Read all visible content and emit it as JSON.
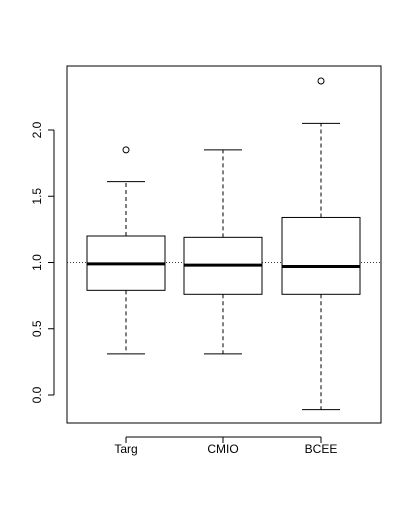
{
  "chart_data": {
    "type": "box",
    "categories": [
      "Targ",
      "CMIO",
      "BCEE"
    ],
    "boxes": [
      {
        "name": "Targ",
        "whisker_low": 0.31,
        "q1": 0.79,
        "median": 0.99,
        "q3": 1.2,
        "whisker_high": 1.61,
        "outliers": [
          1.85
        ]
      },
      {
        "name": "CMIO",
        "whisker_low": 0.31,
        "q1": 0.76,
        "median": 0.98,
        "q3": 1.19,
        "whisker_high": 1.85,
        "outliers": []
      },
      {
        "name": "BCEE",
        "whisker_low": -0.11,
        "q1": 0.76,
        "median": 0.97,
        "q3": 1.34,
        "whisker_high": 2.05,
        "outliers": [
          2.37
        ]
      }
    ],
    "reference_line": 1.0,
    "yticks": [
      "0.0",
      "0.5",
      "1.0",
      "1.5",
      "2.0"
    ],
    "ylim": [
      -0.2,
      2.5
    ],
    "title": "",
    "xlabel": "",
    "ylabel": "",
    "grid": false
  }
}
